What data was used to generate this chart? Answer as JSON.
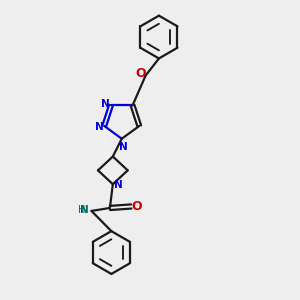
{
  "bg_color": "#eeeeee",
  "bond_color": "#1a1a1a",
  "n_color": "#0000dd",
  "o_color": "#cc0000",
  "nh_color": "#006666",
  "lw": 1.6,
  "fs": 7.5,
  "xlim": [
    2.5,
    8.5
  ],
  "ylim": [
    0.5,
    10.5
  ]
}
